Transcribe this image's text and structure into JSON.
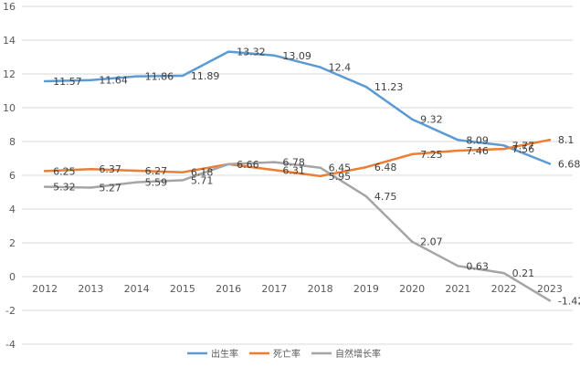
{
  "chart_data": {
    "type": "line",
    "title": "",
    "xlabel": "",
    "ylabel": "",
    "categories": [
      "2012",
      "2013",
      "2014",
      "2015",
      "2016",
      "2017",
      "2018",
      "2019",
      "2020",
      "2021",
      "2022",
      "2023"
    ],
    "ylim": [
      -4,
      16
    ],
    "yticks": [
      -4,
      -2,
      0,
      2,
      4,
      6,
      8,
      10,
      12,
      14,
      16
    ],
    "grid": true,
    "legend_position": "bottom",
    "series": [
      {
        "name": "出生率",
        "color": "#5B9BD5",
        "values": [
          11.57,
          11.64,
          11.86,
          11.89,
          13.32,
          13.09,
          12.4,
          11.23,
          9.32,
          8.09,
          7.77,
          6.68
        ],
        "labels": [
          "11.57",
          "11.64",
          "11.86",
          "11.89",
          "13.32",
          "13.09",
          "12.4",
          "11.23",
          "9.32",
          "8.09",
          "7.77",
          "6.68"
        ]
      },
      {
        "name": "死亡率",
        "color": "#ED7D31",
        "values": [
          6.25,
          6.37,
          6.27,
          6.18,
          6.66,
          6.31,
          5.95,
          6.48,
          7.25,
          7.46,
          7.56,
          8.1
        ],
        "labels": [
          "6.25",
          "6.37",
          "6.27",
          "6.18",
          "6.66",
          "6.31",
          "5.95",
          "6.48",
          "7.25",
          "7.46",
          "7.56",
          "8.1"
        ]
      },
      {
        "name": "自然增长率",
        "color": "#A5A5A5",
        "values": [
          5.32,
          5.27,
          5.59,
          5.71,
          6.66,
          6.78,
          6.45,
          4.75,
          2.07,
          0.63,
          0.21,
          -1.42
        ],
        "labels": [
          "5.32",
          "5.27",
          "5.59",
          "5.71",
          "",
          "6.78",
          "6.45",
          "4.75",
          "2.07",
          "0.63",
          "0.21",
          "-1.42"
        ]
      }
    ]
  }
}
